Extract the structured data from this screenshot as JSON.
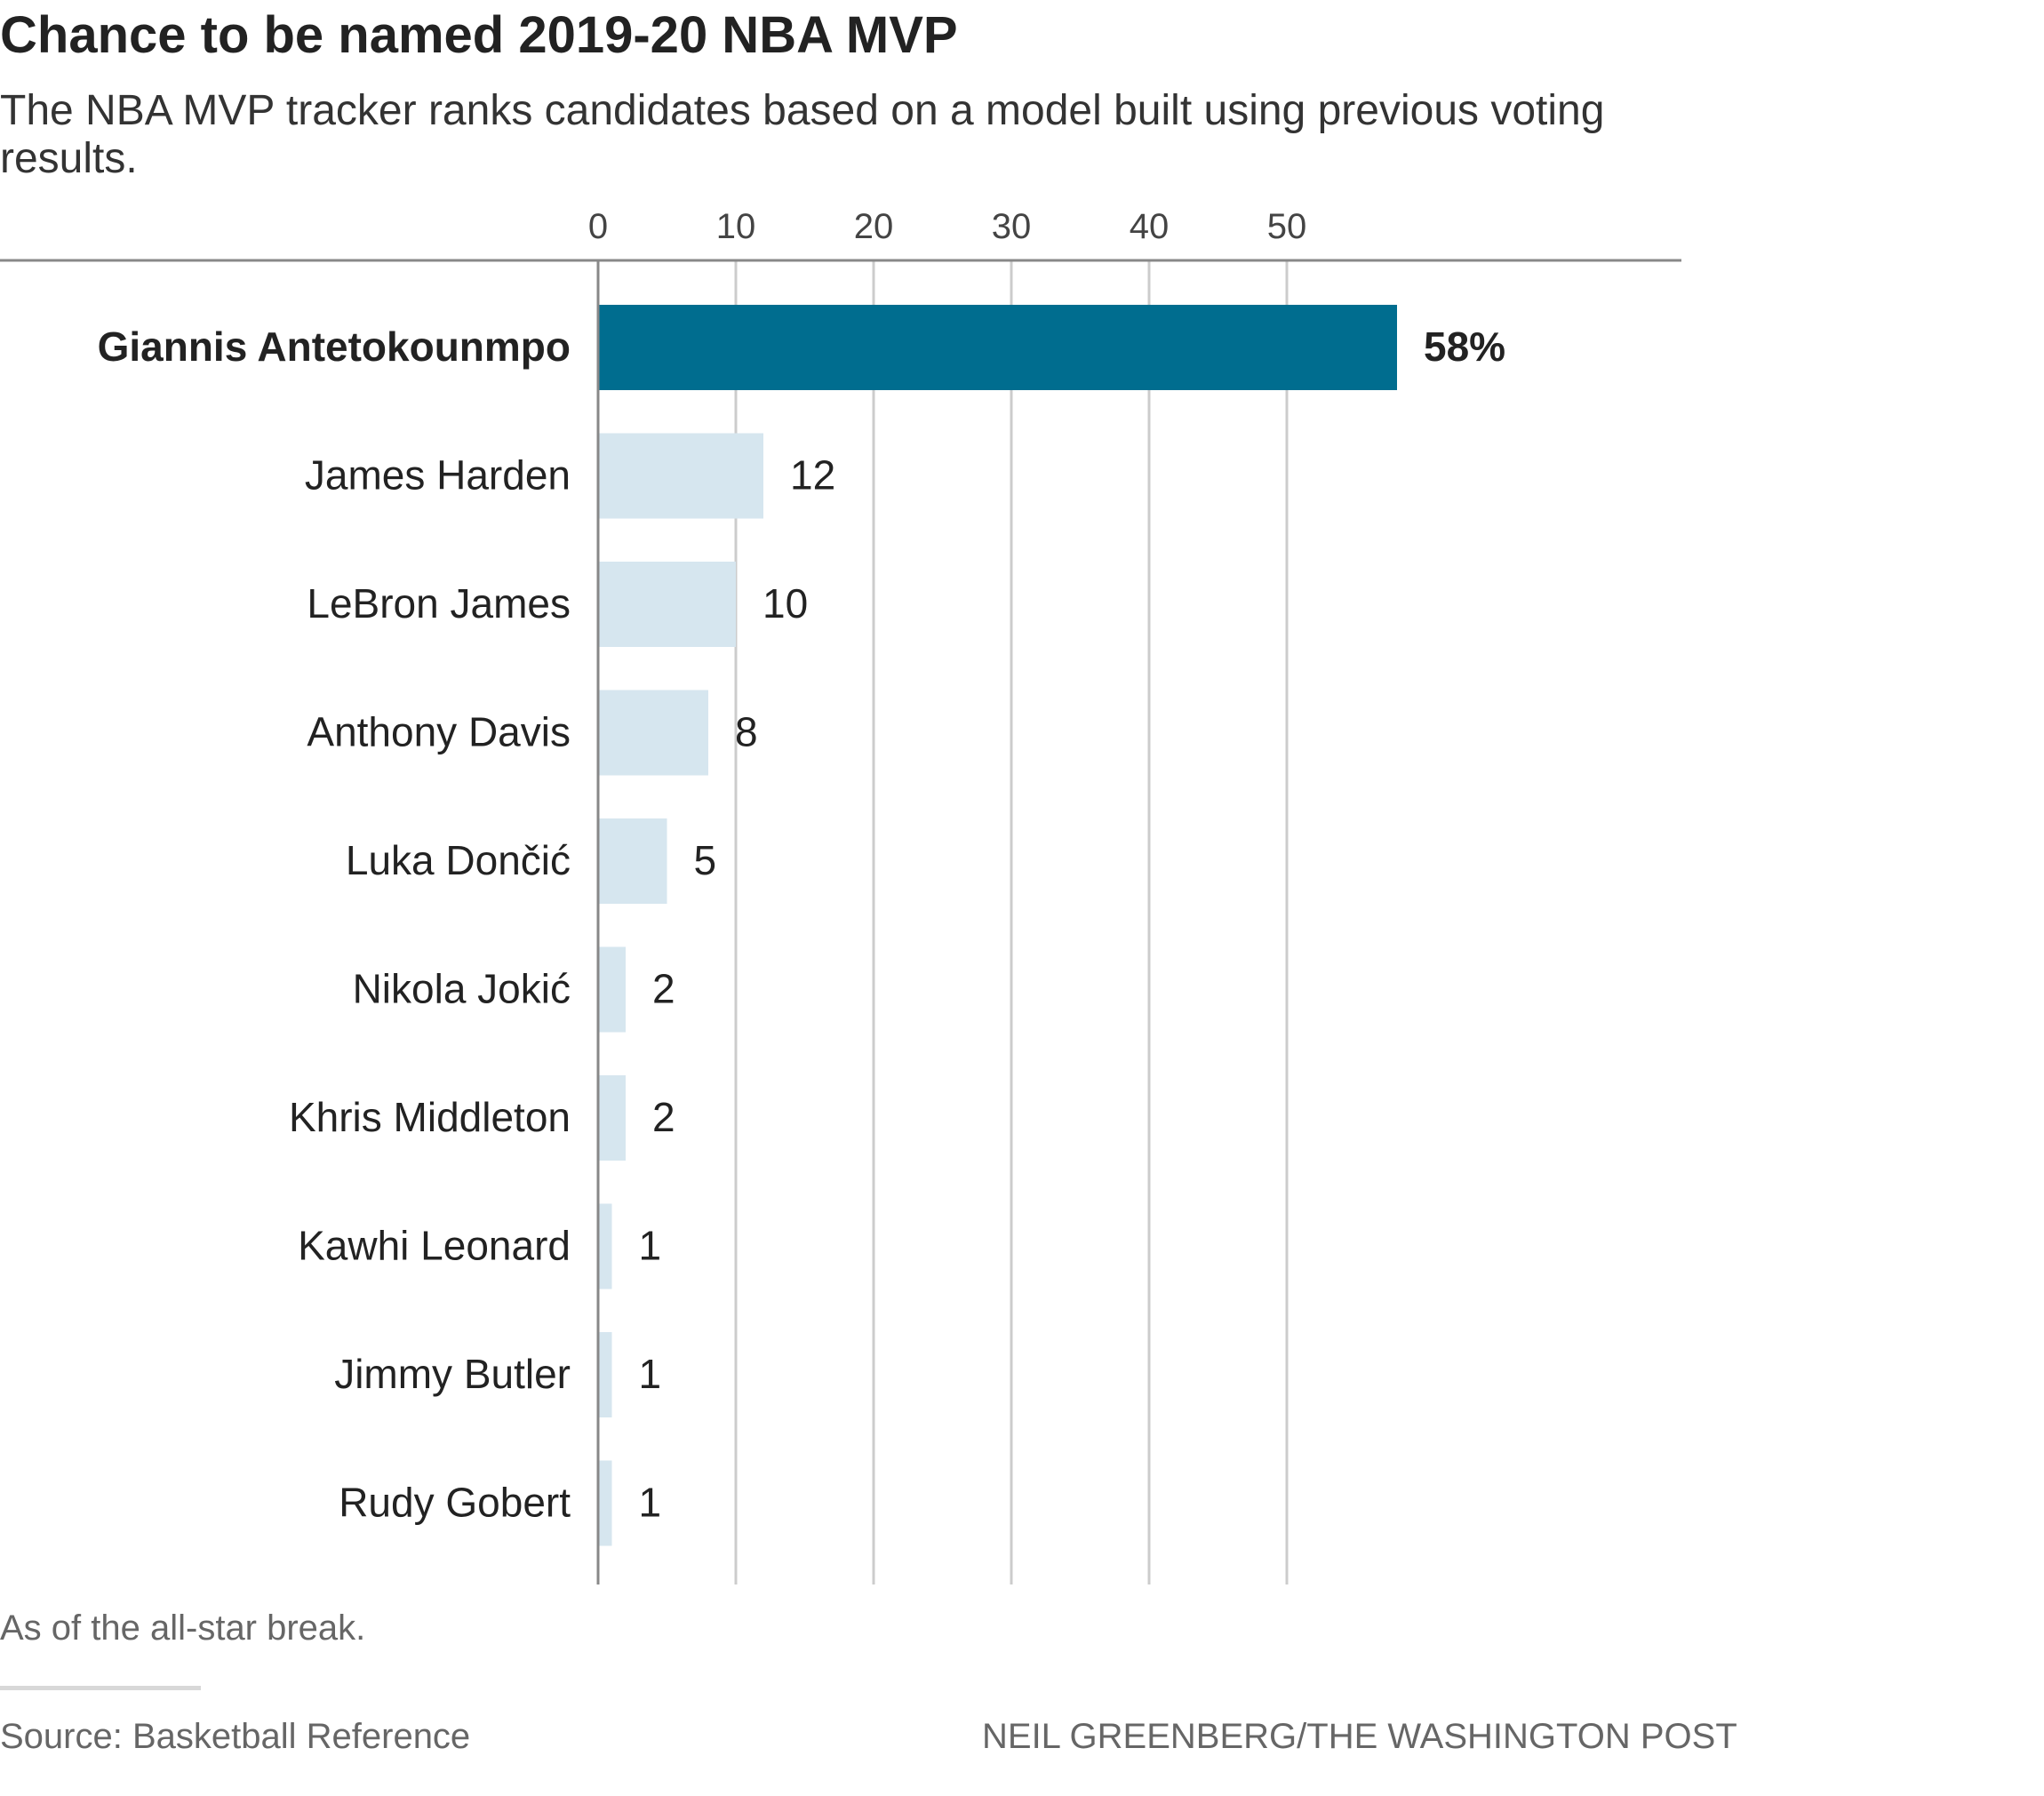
{
  "title": "Chance to be named 2019-20 NBA MVP",
  "subtitle": "The NBA MVP tracker ranks candidates based on a model built using previous voting results.",
  "note": "As of the all-star break.",
  "source": "Source: Basketball Reference",
  "credit": "NEIL GREENBERG/THE WASHINGTON POST",
  "colors": {
    "highlight": "#006d8f",
    "bar": "#d6e6ef",
    "grid": "#cccccc",
    "axis": "#888888"
  },
  "chart_data": {
    "type": "bar",
    "orientation": "horizontal",
    "categories": [
      "Giannis Antetokounmpo",
      "James Harden",
      "LeBron James",
      "Anthony Davis",
      "Luka Dončić",
      "Nikola Jokić",
      "Khris Middleton",
      "Kawhi Leonard",
      "Jimmy Butler",
      "Rudy Gobert"
    ],
    "values": [
      58,
      12,
      10,
      8,
      5,
      2,
      2,
      1,
      1,
      1
    ],
    "value_labels": [
      "58%",
      "12",
      "10",
      "8",
      "5",
      "2",
      "2",
      "1",
      "1",
      "1"
    ],
    "highlight_index": 0,
    "xticks": [
      0,
      10,
      20,
      30,
      40,
      50
    ],
    "xlim": [
      0,
      70
    ],
    "axis_position": "top",
    "grid": true
  }
}
